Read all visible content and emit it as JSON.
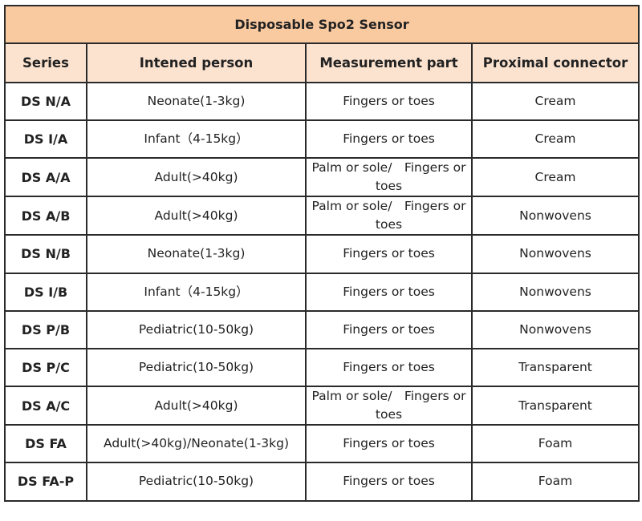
{
  "title": "Disposable Spo2 Sensor",
  "headers": [
    "Series",
    "Intened person",
    "Measurement part",
    "Proximal connector"
  ],
  "rows": [
    [
      "DS N/A",
      "Neonate(1-3kg)",
      "Fingers or toes",
      "Cream"
    ],
    [
      "DS I/A",
      "Infant（4-15kg）",
      "Fingers or toes",
      "Cream"
    ],
    [
      "DS A/A",
      "Adult(>40kg)",
      "Palm or sole/　Fingers or toes",
      "Cream"
    ],
    [
      "DS A/B",
      "Adult(>40kg)",
      "Palm or sole/　Fingers or toes",
      "Nonwovens"
    ],
    [
      "DS N/B",
      "Neonate(1-3kg)",
      "Fingers or toes",
      "Nonwovens"
    ],
    [
      "DS I/B",
      "Infant（4-15kg）",
      "Fingers or toes",
      "Nonwovens"
    ],
    [
      "DS P/B",
      "Pediatric(10-50kg)",
      "Fingers or toes",
      "Nonwovens"
    ],
    [
      "DS P/C",
      "Pediatric(10-50kg)",
      "Fingers or toes",
      "Transparent"
    ],
    [
      "DS A/C",
      "Adult(>40kg)",
      "Palm or sole/　Fingers or toes",
      "Transparent"
    ],
    [
      "DS FA",
      "Adult(>40kg)/Neonate(1-3kg)",
      "Fingers or toes",
      "Foam"
    ],
    [
      "DS FA-P",
      "Pediatric(10-50kg)",
      "Fingers or toes",
      "Foam"
    ]
  ]
}
